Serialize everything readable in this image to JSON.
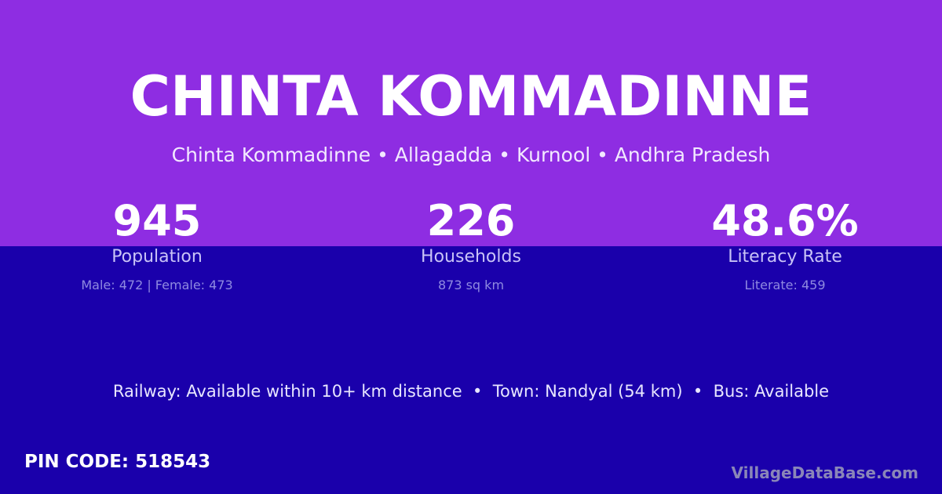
{
  "title": "CHINTA KOMMADINNE",
  "subtitle": "Chinta Kommadinne • Allagadda • Kurnool • Andhra Pradesh",
  "stats": [
    {
      "value": "945",
      "label": "Population",
      "detail": "Male: 472 | Female: 473"
    },
    {
      "value": "226",
      "label": "Households",
      "detail": "873 sq km"
    },
    {
      "value": "48.6%",
      "label": "Literacy Rate",
      "detail": "Literate: 459"
    }
  ],
  "facilities": "Railway: Available within 10+ km distance  •  Town: Nandyal (54 km)  •  Bus: Available",
  "pin_code": "PIN CODE: 518543",
  "brand": "VillageDataBase.com",
  "colors": {
    "top": "#8e2de2",
    "bottom": "#1a00ab"
  }
}
